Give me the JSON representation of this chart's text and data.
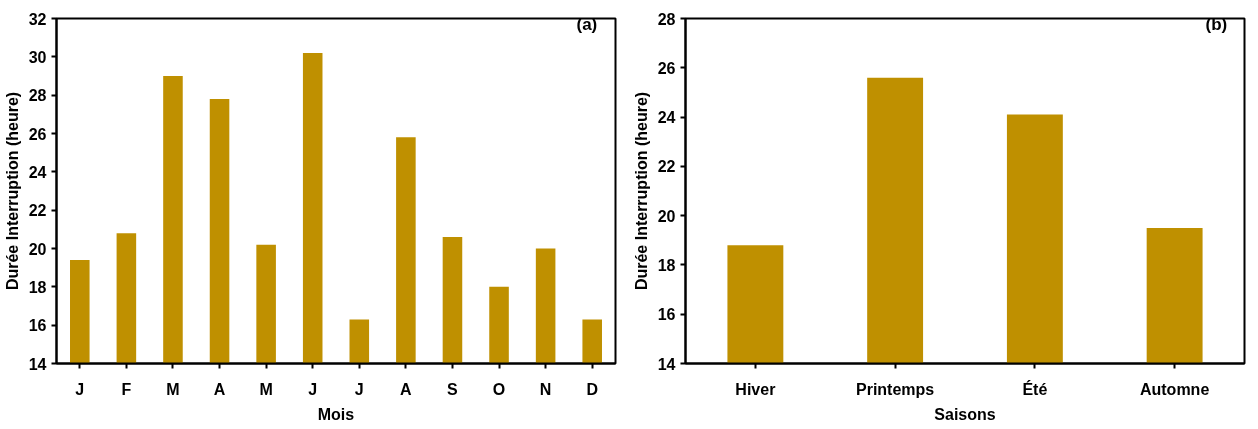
{
  "chart_data": [
    {
      "type": "bar",
      "xlabel": "Mois",
      "ylabel": "Durée Interruption (heure)",
      "annotations": [
        "(a)"
      ],
      "categories": [
        "J",
        "F",
        "M",
        "A",
        "M",
        "J",
        "J",
        "A",
        "S",
        "O",
        "N",
        "D"
      ],
      "series": [
        {
          "color": "#bf9000",
          "values": [
            19.4,
            20.8,
            29.0,
            27.8,
            20.2,
            30.2,
            16.3,
            25.8,
            20.6,
            18.0,
            20.0,
            16.3
          ]
        }
      ],
      "ylim": [
        14,
        32
      ],
      "yticks": [
        14,
        16,
        18,
        20,
        22,
        24,
        26,
        28,
        30,
        32
      ],
      "grid": false
    },
    {
      "type": "bar",
      "xlabel": "Saisons",
      "ylabel": "Durée Interruption (heure)",
      "annotations": [
        "(b)"
      ],
      "categories": [
        "Hiver",
        "Printemps",
        "Été",
        "Automne"
      ],
      "series": [
        {
          "color": "#bf9000",
          "values": [
            18.8,
            25.6,
            24.1,
            19.5
          ]
        }
      ],
      "ylim": [
        14,
        28
      ],
      "yticks": [
        14,
        16,
        18,
        20,
        22,
        24,
        26,
        28
      ],
      "grid": false
    }
  ]
}
